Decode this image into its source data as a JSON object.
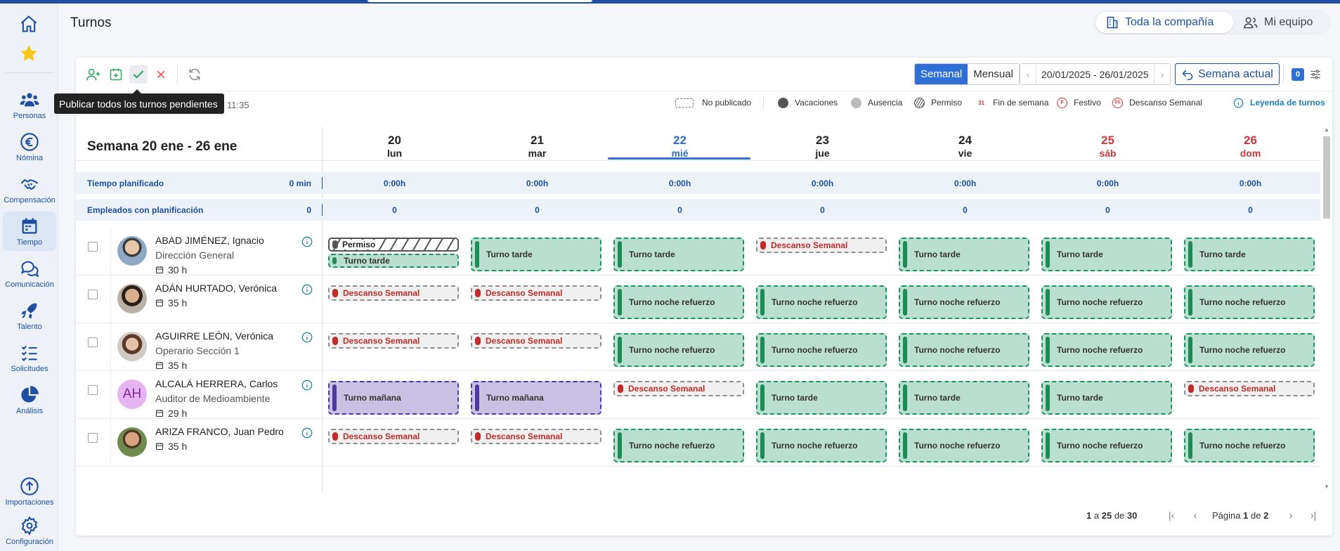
{
  "page": {
    "title": "Turnos"
  },
  "scope": {
    "company": "Toda la compañía",
    "team": "Mi equipo"
  },
  "nav": [
    {
      "label": "Personas"
    },
    {
      "label": "Nómina"
    },
    {
      "label": "Compensación"
    },
    {
      "label": "Tiempo"
    },
    {
      "label": "Comunicación"
    },
    {
      "label": "Talento"
    },
    {
      "label": "Solicitudes"
    },
    {
      "label": "Análisis"
    },
    {
      "label": "Importaciones"
    },
    {
      "label": "Configuración"
    }
  ],
  "toolbar": {
    "tooltip": "Publicar todos los turnos pendientes",
    "updated_time": "11:35",
    "view_weekly": "Semanal",
    "view_monthly": "Mensual",
    "date_range": "20/01/2025 - 26/01/2025",
    "current_week": "Semana actual",
    "badge_count": "0"
  },
  "legend": {
    "unpublished": "No publicado",
    "vacations": "Vacaciones",
    "absence": "Ausencia",
    "permit": "Permiso",
    "weekend_abbr": "31",
    "weekend": "Fin de semana",
    "holiday_abbr": "F",
    "holiday": "Festivo",
    "rest_abbr": "DS",
    "rest": "Descanso Semanal",
    "shift_legend": "Leyenda de turnos"
  },
  "week": {
    "title": "Semana 20 ene - 26 ene",
    "days": [
      {
        "num": "20",
        "name": "lun"
      },
      {
        "num": "21",
        "name": "mar"
      },
      {
        "num": "22",
        "name": "mié"
      },
      {
        "num": "23",
        "name": "jue"
      },
      {
        "num": "24",
        "name": "vie"
      },
      {
        "num": "25",
        "name": "sáb"
      },
      {
        "num": "26",
        "name": "dom"
      }
    ]
  },
  "summary": {
    "planned_label": "Tiempo planificado",
    "planned_total": "0 min",
    "planned": [
      "0:00h",
      "0:00h",
      "0:00h",
      "0:00h",
      "0:00h",
      "0:00h",
      "0:00h"
    ],
    "employees_label": "Empleados con planificación",
    "employees_total": "0",
    "employees": [
      "0",
      "0",
      "0",
      "0",
      "0",
      "0",
      "0"
    ]
  },
  "employees": [
    {
      "name": "ABAD JIMÉNEZ, Ignacio",
      "role": "Dirección General",
      "hours": "30 h",
      "initials": ""
    },
    {
      "name": "ADÁN HURTADO, Verónica",
      "role": "",
      "hours": "35 h",
      "initials": ""
    },
    {
      "name": "AGUIRRE LEÓN, Verónica",
      "role": "Operario Sección 1",
      "hours": "35 h",
      "initials": ""
    },
    {
      "name": "ALCALÁ HERRERA, Carlos",
      "role": "Auditor de Medioambiente",
      "hours": "29 h",
      "initials": "AH"
    },
    {
      "name": "ARIZA FRANCO, Juan Pedro",
      "role": "",
      "hours": "35 h",
      "initials": ""
    }
  ],
  "shift_labels": {
    "permiso": "Permiso",
    "tarde": "Turno tarde",
    "descanso": "Descanso Semanal",
    "noche": "Turno noche refuerzo",
    "manana": "Turno mañana"
  },
  "pager": {
    "from": "1",
    "a": "a",
    "to": "25",
    "de": "de",
    "total": "30",
    "page_word": "Página",
    "page": "1",
    "pages": "2"
  },
  "colors": {
    "brand": "#1f4fa0",
    "accent": "#2f6fd6",
    "weekend": "#d0353c",
    "shift_green": "#b8dfcf",
    "shift_purple": "#c9c0e3"
  }
}
